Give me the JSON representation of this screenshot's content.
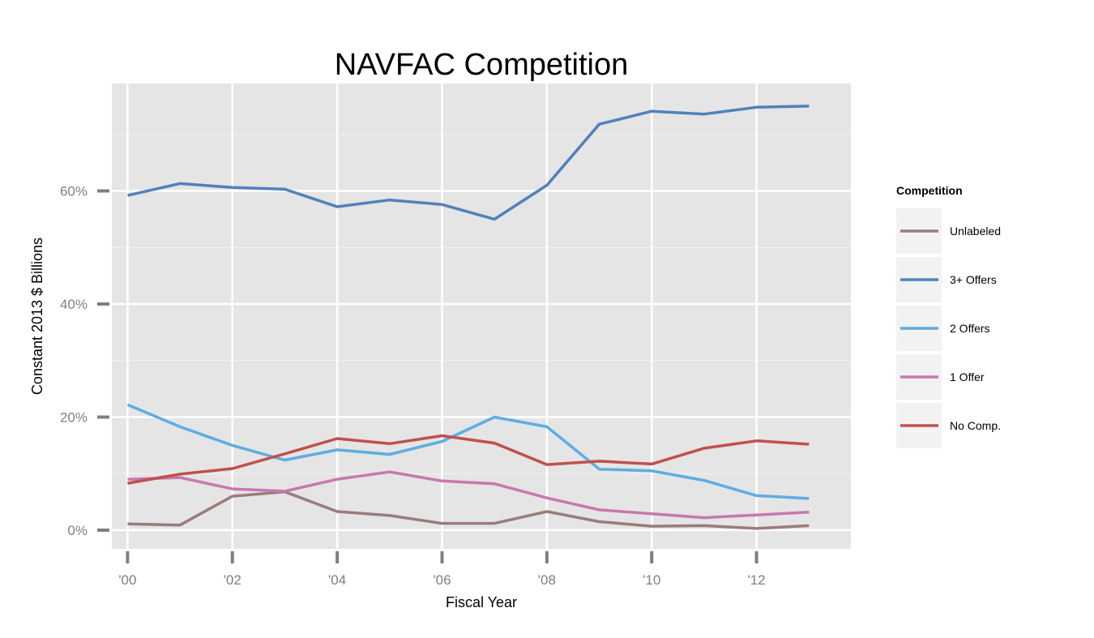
{
  "chart_data": {
    "type": "line",
    "title": "NAVFAC Competition",
    "xlabel": "Fiscal Year",
    "ylabel": "Constant 2013 $ Billions",
    "x": [
      2000,
      2001,
      2002,
      2003,
      2004,
      2005,
      2006,
      2007,
      2008,
      2009,
      2010,
      2011,
      2012,
      2013
    ],
    "x_ticks": [
      2000,
      2002,
      2004,
      2006,
      2008,
      2010,
      2012
    ],
    "x_tick_labels": [
      "'00",
      "'02",
      "'04",
      "'06",
      "'08",
      "'10",
      "'12"
    ],
    "y_ticks": [
      0,
      0.2,
      0.4,
      0.6
    ],
    "y_tick_labels": [
      "0%",
      "20%",
      "40%",
      "60%"
    ],
    "xlim": [
      1999.7,
      2013.8
    ],
    "ylim": [
      -0.033,
      0.79
    ],
    "grid": true,
    "legend": {
      "title": "Competition",
      "position": "right"
    },
    "series": [
      {
        "name": "Unlabeled",
        "color": "#9b7b7b",
        "values": [
          0.011,
          0.009,
          0.06,
          0.068,
          0.033,
          0.026,
          0.012,
          0.012,
          0.033,
          0.015,
          0.007,
          0.008,
          0.003,
          0.008
        ]
      },
      {
        "name": "3+ Offers",
        "color": "#4f81bd",
        "values": [
          0.592,
          0.613,
          0.606,
          0.603,
          0.572,
          0.584,
          0.576,
          0.55,
          0.61,
          0.718,
          0.741,
          0.736,
          0.748,
          0.75
        ]
      },
      {
        "name": "2 Offers",
        "color": "#5dade2",
        "values": [
          0.222,
          0.183,
          0.15,
          0.124,
          0.142,
          0.134,
          0.157,
          0.2,
          0.183,
          0.108,
          0.105,
          0.088,
          0.061,
          0.056
        ]
      },
      {
        "name": "1 Offer",
        "color": "#c878b0",
        "values": [
          0.09,
          0.093,
          0.073,
          0.069,
          0.09,
          0.103,
          0.087,
          0.082,
          0.057,
          0.036,
          0.029,
          0.022,
          0.027,
          0.032
        ]
      },
      {
        "name": "No Comp.",
        "color": "#c0504d",
        "values": [
          0.083,
          0.099,
          0.109,
          0.135,
          0.162,
          0.153,
          0.167,
          0.154,
          0.116,
          0.122,
          0.117,
          0.145,
          0.158,
          0.152
        ]
      }
    ]
  }
}
